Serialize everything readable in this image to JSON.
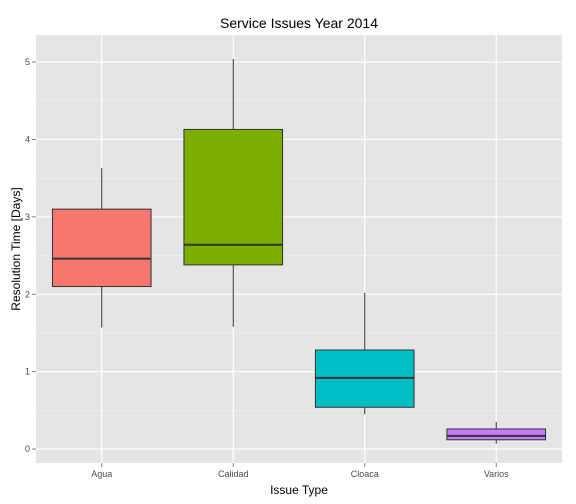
{
  "chart_data": {
    "type": "boxplot",
    "title": "Service Issues Year 2014",
    "xlabel": "Issue Type",
    "ylabel": "Resolution Time [Days]",
    "ylim": [
      -0.18,
      5.35
    ],
    "yticks": [
      "0",
      "1",
      "2",
      "3",
      "4",
      "5"
    ],
    "grid": true,
    "legend": "none",
    "categories": [
      "Agua",
      "Calidad",
      "Cloaca",
      "Varios"
    ],
    "boxes": [
      {
        "category": "Agua",
        "whisker_low": 1.57,
        "q1": 2.1,
        "median": 2.46,
        "q3": 3.1,
        "whisker_high": 3.63,
        "color": "#F8766D"
      },
      {
        "category": "Calidad",
        "whisker_low": 1.58,
        "q1": 2.38,
        "median": 2.64,
        "q3": 4.13,
        "whisker_high": 5.04,
        "color": "#7CAE00"
      },
      {
        "category": "Cloaca",
        "whisker_low": 0.45,
        "q1": 0.54,
        "median": 0.92,
        "q3": 1.28,
        "whisker_high": 2.02,
        "color": "#00BFC4"
      },
      {
        "category": "Varios",
        "whisker_low": 0.07,
        "q1": 0.12,
        "median": 0.17,
        "q3": 0.26,
        "whisker_high": 0.35,
        "color": "#C77CFF"
      }
    ]
  }
}
